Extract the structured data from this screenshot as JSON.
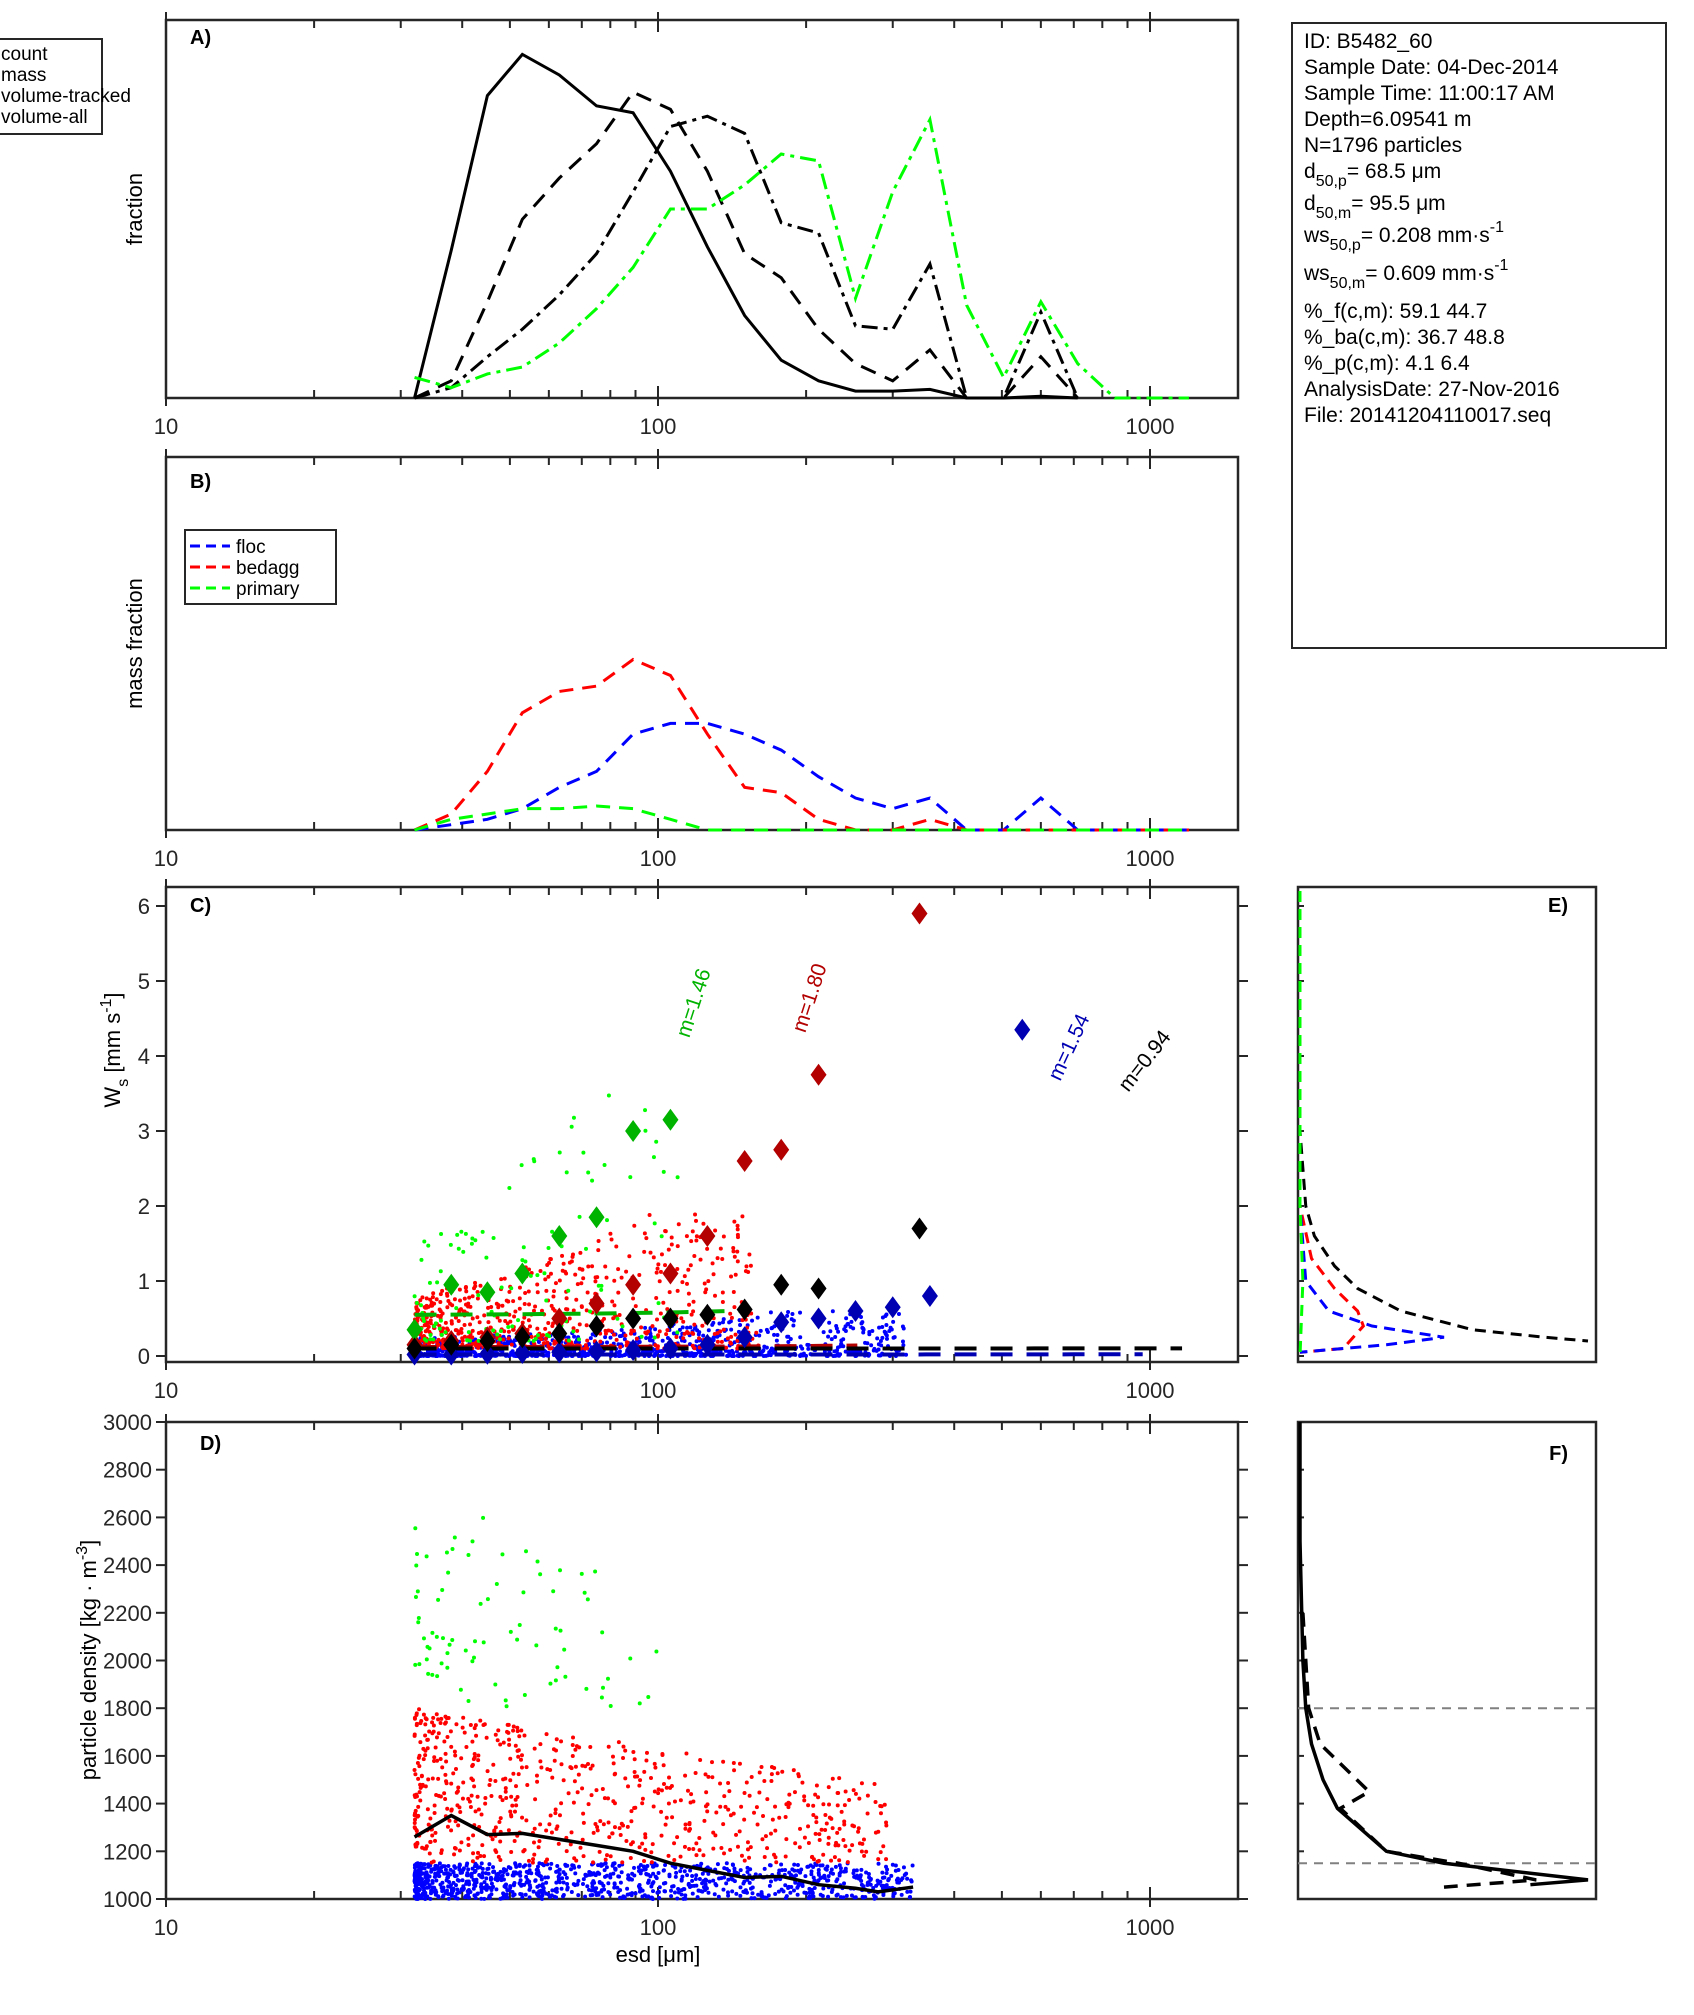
{
  "info_box": {
    "lines": [
      {
        "text": "ID: B5482_60"
      },
      {
        "text": "Sample Date: 04-Dec-2014"
      },
      {
        "text": "Sample Time: 11:00:17 AM"
      },
      {
        "text": "Depth=6.09541 m"
      },
      {
        "text": "N=1796 particles"
      },
      {
        "base": "d",
        "sub": "50,p",
        "rest": "=  68.5 μm"
      },
      {
        "base": "d",
        "sub": "50,m",
        "rest": "=  95.5 μm"
      },
      {
        "base": "ws",
        "sub": "50,p",
        "rest": "= 0.208 mm·s",
        "sup": "-1"
      },
      {
        "base": "ws",
        "sub": "50,m",
        "rest": "= 0.609 mm·s",
        "sup": "-1"
      },
      {
        "text": "%_f(c,m): 59.1 44.7"
      },
      {
        "text": "%_ba(c,m): 36.7 48.8"
      },
      {
        "text": "%_p(c,m): 4.1 6.4"
      },
      {
        "text": "AnalysisDate: 27-Nov-2016"
      },
      {
        "text": "File: 20141204110017.seq"
      }
    ]
  },
  "colors": {
    "floc": "#0000ff",
    "bedagg": "#ff0000",
    "primary": "#00ff00",
    "floc_dark": "#0000b3",
    "bedagg_dark": "#b30000",
    "primary_dark": "#00b300",
    "black": "#000000",
    "axis": "#262626",
    "reference": "#808080"
  },
  "chart_data": [
    {
      "id": "A",
      "type": "line",
      "panel_label": "A)",
      "xlabel": "",
      "ylabel": "fraction",
      "xscale": "log",
      "xlim": [
        10,
        1500
      ],
      "xtick_labels": [
        "10",
        "100",
        "1000"
      ],
      "ylim": [
        0,
        1.1
      ],
      "legend": {
        "entries": [
          "count",
          "mass",
          "volume-tracked",
          "volume-all"
        ],
        "placement": "outside-left-top"
      },
      "x": [
        32,
        38,
        45,
        53,
        63,
        75,
        89,
        106,
        126,
        150,
        178,
        212,
        252,
        300,
        357,
        424,
        504,
        600,
        713,
        848,
        1008,
        1200
      ],
      "series": [
        {
          "name": "count",
          "style": "solid",
          "color": "#000000",
          "values": [
            0.0,
            0.43,
            0.88,
            1.0,
            0.94,
            0.85,
            0.83,
            0.66,
            0.44,
            0.24,
            0.11,
            0.05,
            0.02,
            0.02,
            0.025,
            0.0,
            0.0,
            0.005,
            0.0,
            null,
            null,
            null
          ]
        },
        {
          "name": "mass",
          "style": "dashed",
          "color": "#000000",
          "values": [
            0.0,
            0.05,
            0.28,
            0.52,
            0.64,
            0.74,
            0.89,
            0.84,
            0.66,
            0.42,
            0.35,
            0.2,
            0.1,
            0.05,
            0.14,
            0.0,
            0.0,
            0.12,
            0.0,
            null,
            null,
            null
          ]
        },
        {
          "name": "volume-tracked",
          "style": "dashdot",
          "color": "#000000",
          "values": [
            0.0,
            0.03,
            0.12,
            0.2,
            0.3,
            0.42,
            0.6,
            0.79,
            0.82,
            0.77,
            0.51,
            0.48,
            0.21,
            0.2,
            0.39,
            0.0,
            0.0,
            0.25,
            0.0,
            null,
            null,
            null
          ]
        },
        {
          "name": "volume-all",
          "style": "dashdot",
          "color": "#00ff00",
          "values": [
            0.06,
            0.03,
            0.07,
            0.09,
            0.16,
            0.26,
            0.38,
            0.55,
            0.55,
            0.62,
            0.71,
            0.69,
            0.29,
            0.6,
            0.81,
            0.27,
            0.06,
            0.28,
            0.1,
            0.0,
            0.0,
            0.0
          ]
        }
      ]
    },
    {
      "id": "B",
      "type": "line",
      "panel_label": "B)",
      "xlabel": "",
      "ylabel": "mass fraction",
      "xscale": "log",
      "xlim": [
        10,
        1500
      ],
      "xtick_labels": [
        "10",
        "100",
        "1000"
      ],
      "ylim": [
        0,
        0.7
      ],
      "legend": {
        "entries": [
          "floc",
          "bedagg",
          "primary"
        ],
        "placement": "top-left"
      },
      "x": [
        32,
        38,
        45,
        53,
        63,
        75,
        89,
        106,
        126,
        150,
        178,
        212,
        252,
        300,
        357,
        424,
        504,
        600,
        713,
        848,
        1008,
        1200
      ],
      "series": [
        {
          "name": "floc",
          "style": "dashed",
          "color": "#0000ff",
          "values": [
            0.0,
            0.01,
            0.02,
            0.04,
            0.08,
            0.11,
            0.18,
            0.2,
            0.2,
            0.18,
            0.15,
            0.1,
            0.06,
            0.04,
            0.06,
            0.0,
            0.0,
            0.06,
            0.0,
            0.0,
            0.0,
            0.0
          ]
        },
        {
          "name": "bedagg",
          "style": "dashed",
          "color": "#ff0000",
          "values": [
            0.0,
            0.03,
            0.11,
            0.22,
            0.26,
            0.27,
            0.32,
            0.29,
            0.18,
            0.08,
            0.07,
            0.02,
            0.0,
            0.0,
            0.02,
            0.0,
            0.0,
            0.0,
            0.0,
            0.0,
            0.0,
            0.0
          ]
        },
        {
          "name": "primary",
          "style": "dashed",
          "color": "#00ff00",
          "values": [
            0.0,
            0.02,
            0.03,
            0.04,
            0.04,
            0.045,
            0.04,
            0.02,
            0.0,
            0.0,
            0.0,
            0.0,
            0.0,
            0.0,
            0.0,
            0.0,
            0.0,
            0.0,
            0.0,
            0.0,
            0.0,
            0.0
          ]
        }
      ]
    },
    {
      "id": "C",
      "type": "scatter",
      "panel_label": "C)",
      "xlabel": "",
      "ylabel": "W_s [mm s^-1]",
      "xscale": "log",
      "xlim": [
        10,
        1500
      ],
      "xtick_labels": [
        "10",
        "100",
        "1000"
      ],
      "ylim": [
        -0.1,
        6.25
      ],
      "ytick_labels": [
        "0",
        "1",
        "2",
        "3",
        "4",
        "5",
        "6"
      ],
      "scatter_clouds": [
        {
          "name": "floc",
          "color": "#0000ff",
          "x_range": [
            32,
            320
          ],
          "y_range": [
            0.0,
            0.6
          ],
          "count": 900
        },
        {
          "name": "bedagg",
          "color": "#ff0000",
          "x_range": [
            32,
            160
          ],
          "y_range": [
            0.1,
            1.9
          ],
          "count": 700
        },
        {
          "name": "primary",
          "color": "#00ff00",
          "x_range": [
            32,
            110
          ],
          "y_range": [
            0.2,
            3.5
          ],
          "count": 120
        }
      ],
      "bin_medians": [
        {
          "name": "floc",
          "color": "#0000b3",
          "x": [
            32,
            38,
            45,
            53,
            63,
            75,
            89,
            106,
            126,
            150,
            178,
            212,
            252,
            300,
            357,
            550
          ],
          "y": [
            0.02,
            0.02,
            0.03,
            0.04,
            0.05,
            0.06,
            0.08,
            0.1,
            0.15,
            0.25,
            0.45,
            0.5,
            0.6,
            0.65,
            0.8,
            4.35
          ]
        },
        {
          "name": "bedagg",
          "color": "#b30000",
          "x": [
            32,
            38,
            45,
            53,
            63,
            75,
            89,
            106,
            126,
            150,
            178,
            212,
            340
          ],
          "y": [
            0.15,
            0.2,
            0.25,
            0.3,
            0.5,
            0.7,
            0.95,
            1.1,
            1.6,
            2.6,
            2.75,
            3.75,
            5.9
          ]
        },
        {
          "name": "primary",
          "color": "#00b300",
          "x": [
            32,
            38,
            45,
            53,
            63,
            75,
            89,
            106
          ],
          "y": [
            0.35,
            0.95,
            0.85,
            1.1,
            1.6,
            1.85,
            3.0,
            3.15
          ]
        },
        {
          "name": "all",
          "color": "#000000",
          "x": [
            32,
            38,
            45,
            53,
            63,
            75,
            89,
            106,
            126,
            150,
            178,
            212,
            340
          ],
          "y": [
            0.1,
            0.15,
            0.2,
            0.25,
            0.3,
            0.4,
            0.5,
            0.5,
            0.55,
            0.62,
            0.95,
            0.9,
            1.7
          ]
        }
      ],
      "fit_curves": [
        {
          "name": "primary",
          "label": "m=1.46",
          "color": "#00b300",
          "x_range": [
            32,
            160
          ],
          "exponent": 1.46,
          "y_at_32": 0.55
        },
        {
          "name": "bedagg",
          "label": "m=1.80",
          "color": "#b30000",
          "x_range": [
            32,
            260
          ],
          "exponent": 1.8,
          "y_at_32": 0.12
        },
        {
          "name": "floc",
          "label": "m=1.54",
          "color": "#0000b3",
          "x_range": [
            32,
            1000
          ],
          "exponent": 1.54,
          "y_at_32": 0.02
        },
        {
          "name": "all",
          "label": "m=0.94",
          "color": "#000000",
          "x_range": [
            32,
            1180
          ],
          "exponent": 0.94,
          "y_at_32": 0.1
        }
      ]
    },
    {
      "id": "D",
      "type": "scatter",
      "panel_label": "D)",
      "xlabel": "esd [μm]",
      "ylabel": "particle density [kg · m^-3]",
      "xscale": "log",
      "xlim": [
        10,
        1500
      ],
      "xtick_labels": [
        "10",
        "100",
        "1000"
      ],
      "ylim": [
        1000,
        3000
      ],
      "ytick_labels": [
        "1000",
        "1200",
        "1400",
        "1600",
        "1800",
        "2000",
        "2200",
        "2400",
        "2600",
        "2800",
        "3000"
      ],
      "scatter_clouds": [
        {
          "name": "floc",
          "color": "#0000ff",
          "x_range": [
            32,
            330
          ],
          "y_range": [
            1000,
            1150
          ],
          "count": 1000
        },
        {
          "name": "bedagg",
          "color": "#ff0000",
          "x_range": [
            32,
            300
          ],
          "y_range": [
            1150,
            1800
          ],
          "count": 650
        },
        {
          "name": "primary",
          "color": "#00ff00",
          "x_range": [
            32,
            100
          ],
          "y_range": [
            1800,
            2750
          ],
          "count": 80
        }
      ],
      "median_line": {
        "name": "median density",
        "color": "#000000",
        "x": [
          32,
          38,
          45,
          53,
          63,
          75,
          89,
          106,
          126,
          150,
          178,
          212,
          252,
          280,
          330
        ],
        "y": [
          1260,
          1350,
          1270,
          1275,
          1250,
          1225,
          1200,
          1150,
          1120,
          1090,
          1095,
          1060,
          1045,
          1030,
          1050
        ]
      }
    },
    {
      "id": "E",
      "type": "line",
      "panel_label": "E)",
      "ylabel": "",
      "ylim": [
        -0.1,
        6.25
      ],
      "orientation": "horizontal-distribution",
      "series": [
        {
          "name": "all",
          "style": "dashed",
          "color": "#000000",
          "y": [
            6.2,
            3.0,
            2.0,
            1.6,
            1.2,
            0.9,
            0.6,
            0.35,
            0.25,
            0.2
          ],
          "values": [
            0.0,
            0.0,
            0.02,
            0.05,
            0.12,
            0.2,
            0.35,
            0.6,
            0.85,
            1.0
          ]
        },
        {
          "name": "bedagg",
          "style": "dashed",
          "color": "#ff0000",
          "y": [
            6.2,
            2.0,
            1.3,
            0.9,
            0.6,
            0.4,
            0.1,
            0.05
          ],
          "values": [
            0.0,
            0.0,
            0.04,
            0.12,
            0.2,
            0.22,
            0.15,
            0.0
          ]
        },
        {
          "name": "floc",
          "style": "dashed",
          "color": "#0000ff",
          "y": [
            6.2,
            2.0,
            1.0,
            0.6,
            0.4,
            0.25,
            0.15,
            0.05
          ],
          "values": [
            0.0,
            0.0,
            0.02,
            0.1,
            0.25,
            0.5,
            0.3,
            0.0
          ]
        },
        {
          "name": "primary",
          "style": "dashed",
          "color": "#00ff00",
          "y": [
            6.2,
            2.0,
            1.0,
            0.0
          ],
          "values": [
            0.0,
            0.0,
            0.01,
            0.0
          ]
        }
      ]
    },
    {
      "id": "F",
      "type": "line",
      "panel_label": "F)",
      "ylim": [
        1000,
        3000
      ],
      "orientation": "horizontal-distribution",
      "reference_lines": [
        1150,
        1800
      ],
      "series": [
        {
          "name": "count",
          "style": "solid",
          "color": "#000000",
          "y": [
            3000,
            2500,
            2000,
            1800,
            1650,
            1500,
            1380,
            1200,
            1150,
            1080,
            1060
          ],
          "values": [
            0.0,
            0.0,
            0.01,
            0.02,
            0.04,
            0.08,
            0.13,
            0.3,
            0.5,
            1.0,
            0.8
          ]
        },
        {
          "name": "mass",
          "style": "dashed",
          "color": "#000000",
          "y": [
            2200,
            2000,
            1800,
            1650,
            1450,
            1380,
            1200,
            1150,
            1080,
            1050
          ],
          "values": [
            0.01,
            0.02,
            0.03,
            0.07,
            0.24,
            0.14,
            0.3,
            0.55,
            0.82,
            0.5
          ]
        }
      ]
    }
  ]
}
